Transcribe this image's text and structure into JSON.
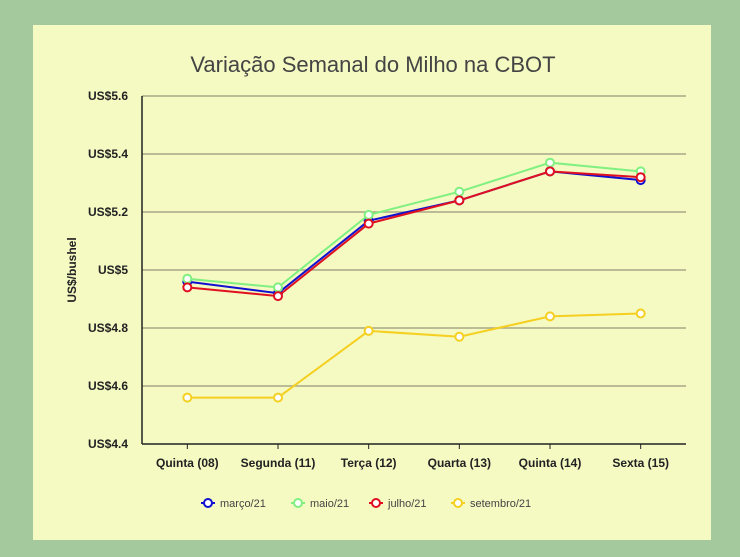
{
  "chart_data": {
    "type": "line",
    "title": "Variação Semanal do Milho na CBOT",
    "xlabel": "",
    "ylabel": "US$/bushel",
    "categories": [
      "Quinta (08)",
      "Segunda (11)",
      "Terça (12)",
      "Quarta (13)",
      "Quinta (14)",
      "Sexta (15)"
    ],
    "ylim": [
      4.4,
      5.6
    ],
    "yticks": [
      4.4,
      4.6,
      4.8,
      5.0,
      5.2,
      5.4,
      5.6
    ],
    "ytick_labels": [
      "US$4.4",
      "US$4.6",
      "US$4.8",
      "US$5",
      "US$5.2",
      "US$5.4",
      "US$5.6"
    ],
    "grid": true,
    "legend_position": "bottom",
    "series": [
      {
        "name": "março/21",
        "color": "#1010d0",
        "values": [
          4.96,
          4.92,
          5.17,
          5.24,
          5.34,
          5.31
        ]
      },
      {
        "name": "maio/21",
        "color": "#80f080",
        "values": [
          4.97,
          4.94,
          5.19,
          5.27,
          5.37,
          5.34
        ]
      },
      {
        "name": "julho/21",
        "color": "#e01020",
        "values": [
          4.94,
          4.91,
          5.16,
          5.24,
          5.34,
          5.32
        ]
      },
      {
        "name": "setembro/21",
        "color": "#f5d020",
        "values": [
          4.56,
          4.56,
          4.79,
          4.77,
          4.84,
          4.85
        ]
      }
    ]
  }
}
